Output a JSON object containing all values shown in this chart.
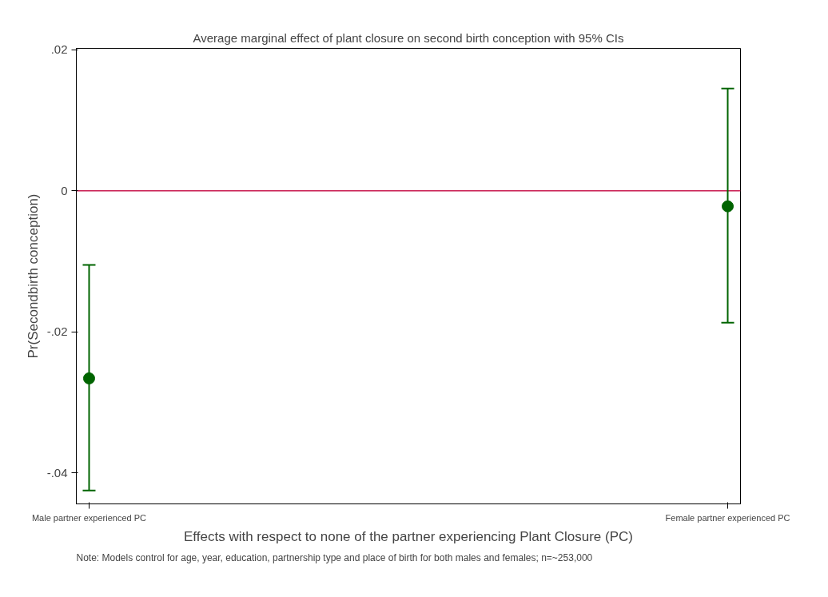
{
  "chart_data": {
    "type": "scatter",
    "title": "Average marginal effect of plant closure on second birth conception with 95% CIs",
    "xlabel": "Effects with respect to none of the partner experiencing Plant Closure (PC)",
    "ylabel": "Pr(Secondbirth conception)",
    "categories": [
      "Male partner experienced PC",
      "Female partner experienced PC"
    ],
    "series": [
      {
        "color": "#006400",
        "values": [
          -0.0266,
          -0.0022
        ],
        "errors": [
          [
            -0.0425,
            -0.0105
          ],
          [
            -0.0187,
            0.0145
          ]
        ]
      }
    ],
    "ylim": [
      -0.0444,
      0.0202
    ],
    "yticks": [
      {
        "value": -0.04,
        "label": "-.04"
      },
      {
        "value": -0.02,
        "label": "-.02"
      },
      0,
      {
        "value": 0.02,
        "label": ".02"
      }
    ],
    "ref_lines": [
      {
        "axis": "y",
        "value": 0,
        "color": "#c8194f"
      }
    ],
    "marker": "circle",
    "grid": false,
    "annotations": [
      "Note: Models control for age, year, education, partnership type and place of birth for both males and females; n=~253,000"
    ]
  }
}
